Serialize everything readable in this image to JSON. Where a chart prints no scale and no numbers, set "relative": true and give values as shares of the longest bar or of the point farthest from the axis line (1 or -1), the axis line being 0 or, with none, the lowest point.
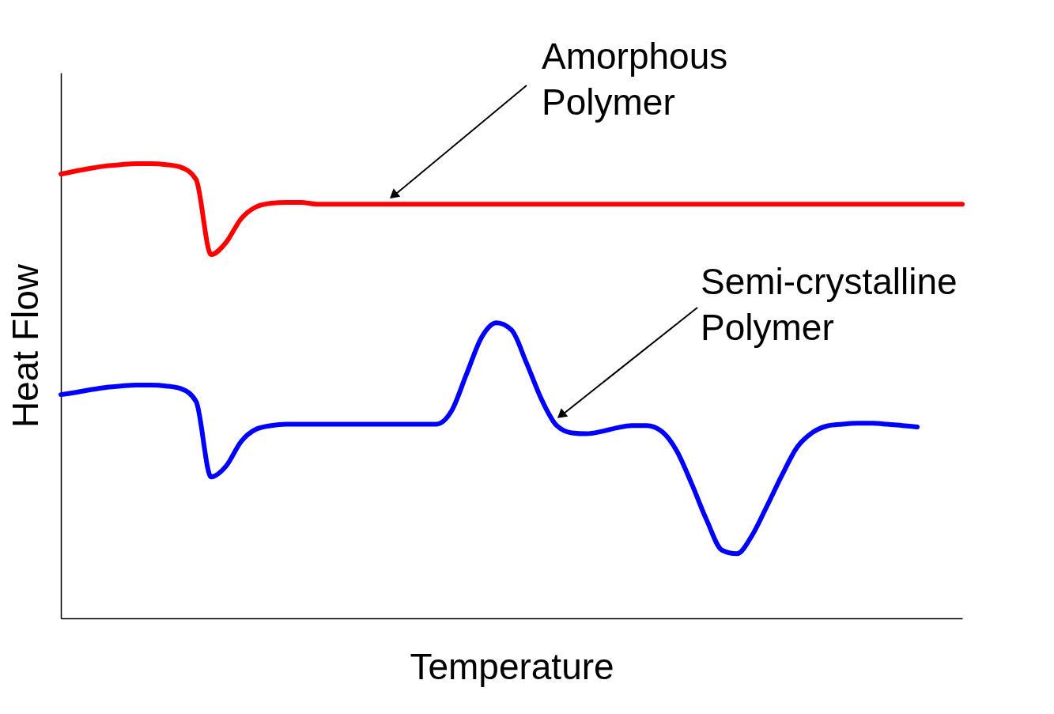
{
  "chart_data": {
    "type": "line",
    "relative": true,
    "xlabel": "Temperature",
    "ylabel": "Heat Flow",
    "grid": false,
    "line_style": "solid",
    "marker": "none",
    "categories": [
      null,
      null,
      null,
      null,
      null,
      null,
      null,
      null,
      null,
      null,
      null,
      null,
      null,
      null,
      null,
      null,
      null,
      null,
      null,
      null,
      null,
      null,
      null,
      null,
      null,
      null,
      null,
      null,
      null,
      null,
      null,
      null,
      null,
      null,
      null,
      null,
      null,
      null,
      null,
      null,
      null,
      null,
      null,
      null,
      null,
      null,
      null,
      null,
      null,
      null,
      null,
      null,
      null,
      null,
      null,
      null,
      null,
      null,
      null,
      null,
      null
    ],
    "series": [
      {
        "color": "#ff0000",
        "values": [
          0.977,
          0.984,
          0.99,
          0.995,
          0.998,
          1.0,
          1.0,
          0.998,
          0.992,
          0.965,
          0.8,
          0.827,
          0.879,
          0.905,
          0.913,
          0.915,
          0.915,
          0.911,
          0.911,
          0.911,
          0.911,
          0.911,
          0.911,
          0.911,
          0.911,
          0.911,
          0.911,
          0.911,
          0.911,
          0.911,
          0.911,
          0.911,
          0.911,
          0.911,
          0.911,
          0.911,
          0.911,
          0.911,
          0.911,
          0.911,
          0.911,
          0.911,
          0.911,
          0.911,
          0.911,
          0.911,
          0.911,
          0.911,
          0.911,
          0.911,
          0.911,
          0.911,
          0.911,
          0.911,
          0.911,
          0.911,
          0.911,
          0.911,
          0.911,
          0.911,
          0.911
        ]
      },
      {
        "color": "#0000ff",
        "values": [
          0.492,
          0.497,
          0.503,
          0.508,
          0.511,
          0.513,
          0.513,
          0.511,
          0.505,
          0.477,
          0.311,
          0.335,
          0.389,
          0.416,
          0.424,
          0.427,
          0.427,
          0.427,
          0.427,
          0.427,
          0.427,
          0.427,
          0.427,
          0.427,
          0.427,
          0.427,
          0.456,
          0.537,
          0.618,
          0.65,
          0.634,
          0.561,
          0.481,
          0.424,
          0.408,
          0.406,
          0.411,
          0.419,
          0.424,
          0.424,
          0.411,
          0.368,
          0.295,
          0.215,
          0.15,
          0.142,
          0.182,
          0.247,
          0.315,
          0.376,
          0.408,
          0.423,
          0.427,
          0.429,
          0.429,
          0.427,
          0.424,
          0.421,
          null,
          null,
          null
        ]
      }
    ],
    "annotations": [
      "Amorphous\nPolymer",
      "Semi-crystalline\nPolymer"
    ]
  }
}
